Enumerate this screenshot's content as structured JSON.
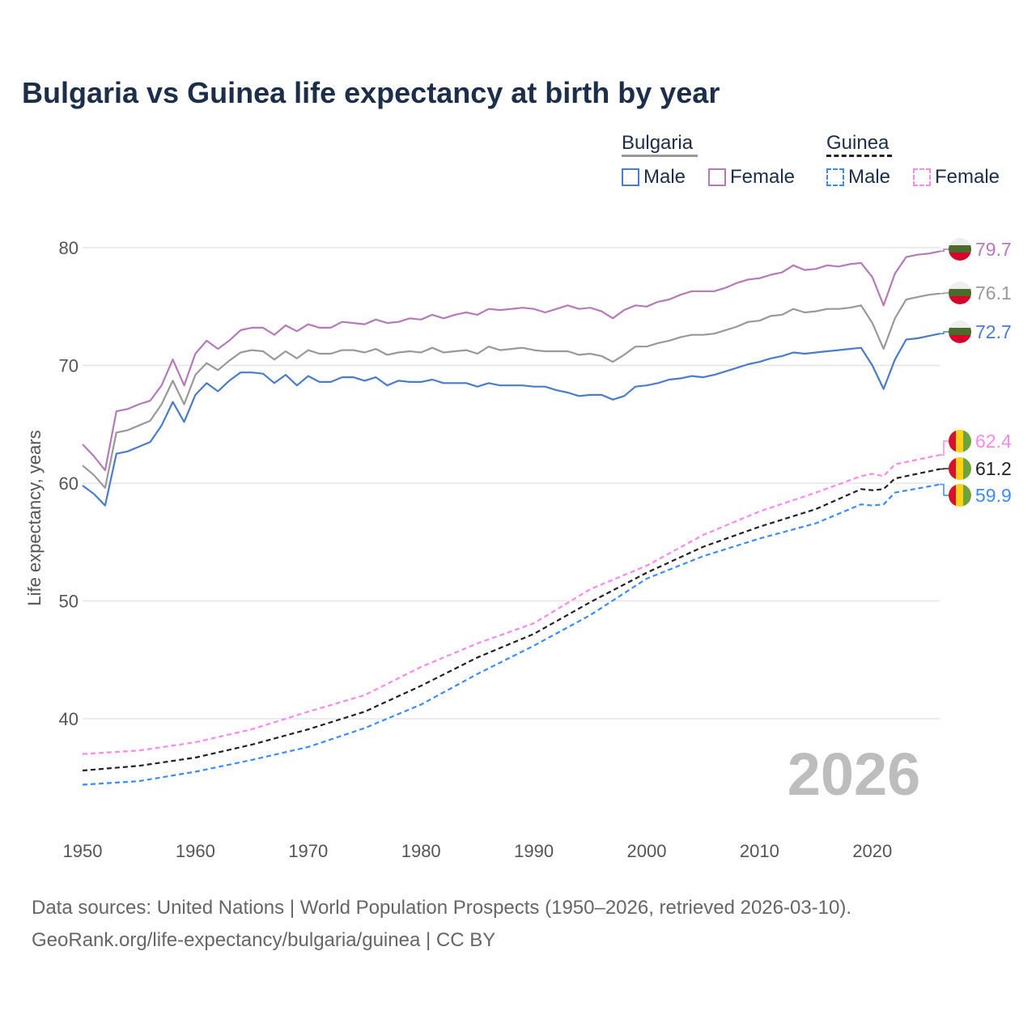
{
  "title": "Bulgaria vs Guinea life expectancy at birth by year",
  "legend": {
    "groups": [
      {
        "name": "Bulgaria",
        "items": [
          "Male",
          "Female"
        ]
      },
      {
        "name": "Guinea",
        "items": [
          "Male",
          "Female"
        ]
      }
    ]
  },
  "year_watermark": "2026",
  "footer": {
    "line1": "Data sources: United Nations | World Population Prospects (1950–2026, retrieved 2026-03-10).",
    "line2": "GeoRank.org/life-expectancy/bulgaria/guinea | CC BY"
  },
  "chart_data": {
    "type": "line",
    "title": "Bulgaria vs Guinea life expectancy at birth by year",
    "xlabel": "",
    "ylabel": "Life expectancy, years",
    "xlim": [
      1950,
      2026
    ],
    "ylim": [
      33,
      82
    ],
    "xticks": [
      1950,
      1960,
      1970,
      1980,
      1990,
      2000,
      2010,
      2020
    ],
    "yticks": [
      40,
      50,
      60,
      70,
      80
    ],
    "grid": true,
    "legend_position": "top-right",
    "series": [
      {
        "name": "Bulgaria Female",
        "color": "#b57ab9",
        "dashed": false,
        "end_label": "79.7",
        "flag": "bulgaria",
        "x_start": 1950,
        "values": [
          63.3,
          62.3,
          61.1,
          66.1,
          66.3,
          66.7,
          67.0,
          68.3,
          70.5,
          68.3,
          71.0,
          72.1,
          71.4,
          72.1,
          73.0,
          73.2,
          73.2,
          72.6,
          73.4,
          72.9,
          73.5,
          73.2,
          73.2,
          73.7,
          73.6,
          73.5,
          73.9,
          73.6,
          73.7,
          74.0,
          73.9,
          74.3,
          74.0,
          74.3,
          74.5,
          74.3,
          74.8,
          74.7,
          74.8,
          74.9,
          74.8,
          74.5,
          74.8,
          75.1,
          74.8,
          74.9,
          74.6,
          74.0,
          74.7,
          75.1,
          75.0,
          75.4,
          75.6,
          76.0,
          76.3,
          76.3,
          76.3,
          76.6,
          77.0,
          77.3,
          77.4,
          77.7,
          77.9,
          78.5,
          78.1,
          78.2,
          78.5,
          78.4,
          78.6,
          78.7,
          77.5,
          75.1,
          77.8,
          79.2,
          79.4,
          79.5,
          79.7
        ]
      },
      {
        "name": "Bulgaria Total",
        "color": "#999999",
        "dashed": false,
        "end_label": "76.1",
        "flag": "bulgaria",
        "x_start": 1950,
        "values": [
          61.5,
          60.7,
          59.6,
          64.3,
          64.5,
          64.9,
          65.3,
          66.7,
          68.7,
          66.7,
          69.2,
          70.2,
          69.6,
          70.4,
          71.1,
          71.3,
          71.2,
          70.5,
          71.2,
          70.6,
          71.3,
          71.0,
          71.0,
          71.3,
          71.3,
          71.1,
          71.4,
          70.9,
          71.1,
          71.2,
          71.1,
          71.5,
          71.1,
          71.2,
          71.3,
          71.0,
          71.6,
          71.3,
          71.4,
          71.5,
          71.3,
          71.2,
          71.2,
          71.2,
          70.9,
          71.0,
          70.8,
          70.3,
          70.9,
          71.6,
          71.6,
          71.9,
          72.1,
          72.4,
          72.6,
          72.6,
          72.7,
          73.0,
          73.3,
          73.7,
          73.8,
          74.2,
          74.3,
          74.8,
          74.5,
          74.6,
          74.8,
          74.8,
          74.9,
          75.1,
          73.6,
          71.4,
          74.0,
          75.6,
          75.8,
          76.0,
          76.1
        ]
      },
      {
        "name": "Bulgaria Male",
        "color": "#4a7cc9",
        "dashed": false,
        "end_label": "72.7",
        "flag": "bulgaria",
        "x_start": 1950,
        "values": [
          59.8,
          59.1,
          58.1,
          62.5,
          62.7,
          63.1,
          63.5,
          64.9,
          66.9,
          65.2,
          67.5,
          68.5,
          67.8,
          68.7,
          69.4,
          69.4,
          69.3,
          68.5,
          69.2,
          68.3,
          69.1,
          68.6,
          68.6,
          69.0,
          69.0,
          68.7,
          69.0,
          68.3,
          68.7,
          68.6,
          68.6,
          68.8,
          68.5,
          68.5,
          68.5,
          68.2,
          68.5,
          68.3,
          68.3,
          68.3,
          68.2,
          68.2,
          67.9,
          67.7,
          67.4,
          67.5,
          67.5,
          67.1,
          67.4,
          68.2,
          68.3,
          68.5,
          68.8,
          68.9,
          69.1,
          69.0,
          69.2,
          69.5,
          69.8,
          70.1,
          70.3,
          70.6,
          70.8,
          71.1,
          71.0,
          71.1,
          71.2,
          71.3,
          71.4,
          71.5,
          70.0,
          68.0,
          70.5,
          72.2,
          72.3,
          72.5,
          72.7
        ]
      },
      {
        "name": "Guinea Female",
        "color": "#ff88ee",
        "dashed": true,
        "end_label": "62.4",
        "flag": "guinea",
        "x": [
          1950,
          1955,
          1960,
          1965,
          1970,
          1975,
          1980,
          1985,
          1990,
          1995,
          2000,
          2005,
          2010,
          2015,
          2019,
          2020,
          2021,
          2022,
          2026
        ],
        "values": [
          37.0,
          37.3,
          38.0,
          39.1,
          40.6,
          42.0,
          44.4,
          46.4,
          48.1,
          51.0,
          53.0,
          55.6,
          57.6,
          59.2,
          60.6,
          60.8,
          60.6,
          61.6,
          62.4
        ]
      },
      {
        "name": "Guinea Total",
        "color": "#222222",
        "dashed": true,
        "end_label": "61.2",
        "flag": "guinea",
        "x": [
          1950,
          1955,
          1960,
          1965,
          1970,
          1975,
          1980,
          1985,
          1990,
          1995,
          2000,
          2005,
          2010,
          2015,
          2019,
          2020,
          2021,
          2022,
          2026
        ],
        "values": [
          35.6,
          36.0,
          36.7,
          37.8,
          39.1,
          40.6,
          42.8,
          45.2,
          47.2,
          49.9,
          52.4,
          54.6,
          56.3,
          57.8,
          59.5,
          59.4,
          59.5,
          60.4,
          61.2
        ]
      },
      {
        "name": "Guinea Male",
        "color": "#3d8cf5",
        "dashed": true,
        "end_label": "59.9",
        "flag": "guinea",
        "x": [
          1950,
          1955,
          1960,
          1965,
          1970,
          1975,
          1980,
          1985,
          1990,
          1995,
          2000,
          2005,
          2010,
          2015,
          2019,
          2020,
          2021,
          2022,
          2026
        ],
        "values": [
          34.4,
          34.7,
          35.5,
          36.5,
          37.6,
          39.2,
          41.2,
          43.8,
          46.2,
          48.8,
          51.9,
          53.8,
          55.3,
          56.6,
          58.2,
          58.1,
          58.2,
          59.2,
          59.9
        ]
      }
    ]
  }
}
